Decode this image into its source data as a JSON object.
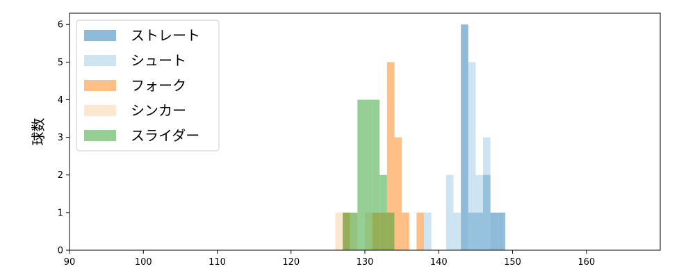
{
  "chart_data": {
    "type": "histogram",
    "xlim": [
      90,
      170
    ],
    "ylim": [
      0,
      6.3
    ],
    "x_ticks": [
      90,
      100,
      110,
      120,
      130,
      140,
      150,
      160
    ],
    "y_ticks": [
      0,
      1,
      2,
      3,
      4,
      5,
      6
    ],
    "xlabel": "",
    "ylabel": "球数",
    "grid": false,
    "legend_position": "top-left",
    "series": [
      {
        "name": "ストレート",
        "color": "#1f77b4",
        "bins": [
          {
            "x0": 143,
            "x1": 144,
            "count": 6
          },
          {
            "x0": 144,
            "x1": 145,
            "count": 1
          },
          {
            "x0": 145,
            "x1": 146,
            "count": 1
          },
          {
            "x0": 146,
            "x1": 147,
            "count": 2
          },
          {
            "x0": 147,
            "x1": 148,
            "count": 1
          },
          {
            "x0": 148,
            "x1": 149,
            "count": 1
          }
        ]
      },
      {
        "name": "シュート",
        "color": "#9ecae1",
        "bins": [
          {
            "x0": 138,
            "x1": 139,
            "count": 1
          },
          {
            "x0": 141,
            "x1": 142,
            "count": 2
          },
          {
            "x0": 142,
            "x1": 143,
            "count": 1
          },
          {
            "x0": 144,
            "x1": 145,
            "count": 5
          },
          {
            "x0": 145,
            "x1": 146,
            "count": 2
          },
          {
            "x0": 146,
            "x1": 147,
            "count": 3
          }
        ]
      },
      {
        "name": "フォーク",
        "color": "#ff7f0e",
        "bins": [
          {
            "x0": 127,
            "x1": 128,
            "count": 1
          },
          {
            "x0": 131,
            "x1": 132,
            "count": 1
          },
          {
            "x0": 132,
            "x1": 133,
            "count": 1
          },
          {
            "x0": 133,
            "x1": 134,
            "count": 5
          },
          {
            "x0": 134,
            "x1": 135,
            "count": 3
          },
          {
            "x0": 135,
            "x1": 136,
            "count": 1
          },
          {
            "x0": 137,
            "x1": 138,
            "count": 1
          }
        ]
      },
      {
        "name": "シンカー",
        "color": "#fdd0a2",
        "bins": [
          {
            "x0": 126,
            "x1": 127,
            "count": 1
          },
          {
            "x0": 128,
            "x1": 129,
            "count": 1
          },
          {
            "x0": 130,
            "x1": 131,
            "count": 1
          }
        ]
      },
      {
        "name": "スライダー",
        "color": "#2ca02c",
        "bins": [
          {
            "x0": 127,
            "x1": 128,
            "count": 1
          },
          {
            "x0": 128,
            "x1": 129,
            "count": 1
          },
          {
            "x0": 129,
            "x1": 130,
            "count": 4
          },
          {
            "x0": 130,
            "x1": 131,
            "count": 4
          },
          {
            "x0": 131,
            "x1": 132,
            "count": 4
          },
          {
            "x0": 132,
            "x1": 133,
            "count": 2
          },
          {
            "x0": 133,
            "x1": 134,
            "count": 1
          }
        ]
      }
    ]
  }
}
